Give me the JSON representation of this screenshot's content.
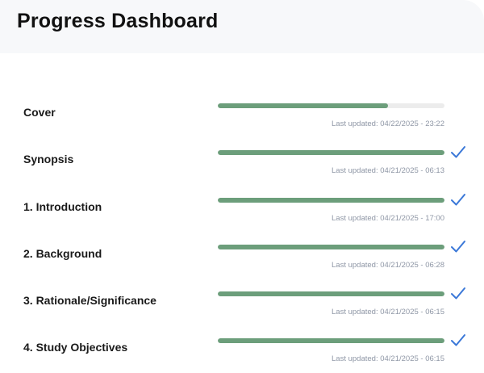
{
  "header": {
    "title": "Progress Dashboard"
  },
  "colors": {
    "progress_fill": "#6c9e7b",
    "progress_track": "#ececec",
    "check": "#3b78d8",
    "timestamp_text": "#8f97a6"
  },
  "sections": [
    {
      "label": "Cover",
      "progress_percent": 75,
      "complete": false,
      "updated": "Last updated: 04/22/2025 - 23:22",
      "icon": "none"
    },
    {
      "label": "Synopsis",
      "progress_percent": 100,
      "complete": true,
      "updated": "Last updated: 04/21/2025 - 06:13",
      "icon": "check-icon"
    },
    {
      "label": "1. Introduction",
      "progress_percent": 100,
      "complete": true,
      "updated": "Last updated: 04/21/2025 - 17:00",
      "icon": "check-icon"
    },
    {
      "label": "2. Background",
      "progress_percent": 100,
      "complete": true,
      "updated": "Last updated: 04/21/2025 - 06:28",
      "icon": "check-icon"
    },
    {
      "label": "3. Rationale/Significance",
      "progress_percent": 100,
      "complete": true,
      "updated": "Last updated: 04/21/2025 - 06:15",
      "icon": "check-icon"
    },
    {
      "label": "4. Study Objectives",
      "progress_percent": 100,
      "complete": true,
      "updated": "Last updated: 04/21/2025 - 06:15",
      "icon": "check-icon"
    }
  ]
}
